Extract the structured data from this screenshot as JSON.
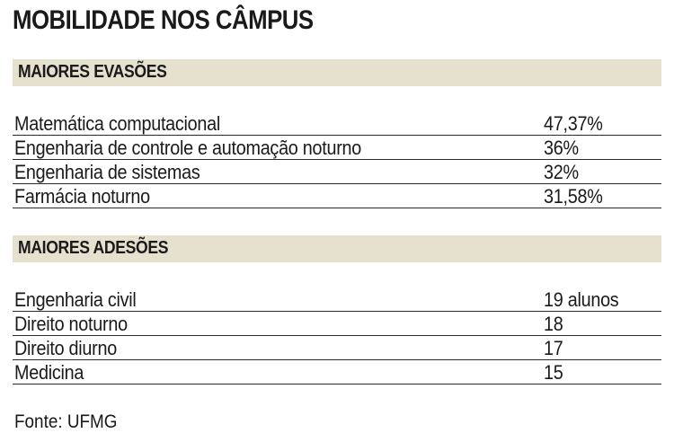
{
  "title": "MOBILIDADE NOS CÂMPUS",
  "sections": [
    {
      "label": "MAIORES EVASÕES",
      "rows": [
        {
          "name": "Matemática computacional",
          "value": "47,37%"
        },
        {
          "name": "Engenharia de controle e automação noturno",
          "value": "36%"
        },
        {
          "name": "Engenharia de sistemas",
          "value": "32%"
        },
        {
          "name": "Farmácia noturno",
          "value": "31,58%"
        }
      ]
    },
    {
      "label": "MAIORES ADESÕES",
      "rows": [
        {
          "name": "Engenharia civil",
          "value": "19 alunos"
        },
        {
          "name": "Direito noturno",
          "value": "18"
        },
        {
          "name": "Direito diurno",
          "value": "17"
        },
        {
          "name": "Medicina",
          "value": "15"
        }
      ]
    }
  ],
  "source": "Fonte: UFMG",
  "colors": {
    "section_bar": "#e6e1cf",
    "text": "#1a1a1a",
    "rule": "#2a2a2a"
  }
}
